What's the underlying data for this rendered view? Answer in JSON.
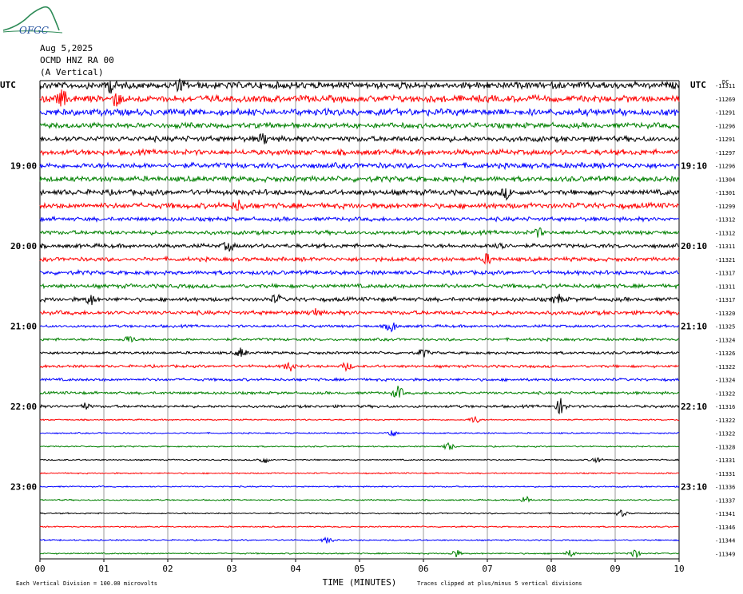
{
  "header": {
    "date": "Aug 5,2025",
    "channel": "OCMD HNZ RA 00",
    "component": "(A Vertical)"
  },
  "logo_text": "OFGC",
  "colors": {
    "black": "#000000",
    "red": "#ff0000",
    "blue": "#0000ff",
    "green": "#008000",
    "grid": "#808080"
  },
  "chart_data": {
    "type": "line",
    "title": "",
    "xlabel": "TIME (MINUTES)",
    "ylabel": "",
    "x_ticks": [
      "00",
      "01",
      "02",
      "03",
      "04",
      "05",
      "06",
      "07",
      "08",
      "09",
      "10"
    ],
    "xlim": [
      0,
      10
    ],
    "left_axis_label": "UTC",
    "right_axis_label": "UTC",
    "right_axis_unit": "DC",
    "left_time_labels": [
      {
        "row": 6,
        "label": "19:00"
      },
      {
        "row": 12,
        "label": "20:00"
      },
      {
        "row": 18,
        "label": "21:00"
      },
      {
        "row": 24,
        "label": "22:00"
      },
      {
        "row": 30,
        "label": "23:00"
      }
    ],
    "right_time_labels": [
      {
        "row": 6,
        "label": "19:10"
      },
      {
        "row": 12,
        "label": "20:10"
      },
      {
        "row": 18,
        "label": "21:10"
      },
      {
        "row": 24,
        "label": "22:10"
      },
      {
        "row": 30,
        "label": "23:10"
      }
    ],
    "trace_colors": [
      "black",
      "red",
      "blue",
      "green"
    ],
    "dc_offsets": [
      -11311,
      -11269,
      -11291,
      -11296,
      -11291,
      -11297,
      -11296,
      -11304,
      -11301,
      -11299,
      -11312,
      -11312,
      -11311,
      -11321,
      -11317,
      -11311,
      -11317,
      -11320,
      -11325,
      -11324,
      -11326,
      -11322,
      -11324,
      -11322,
      -11316,
      -11322,
      -11322,
      -11328,
      -11331,
      -11331,
      -11336,
      -11337,
      -11341,
      -11346,
      -11344,
      -11349
    ],
    "amplitude": [
      5,
      5,
      5,
      4,
      4,
      4,
      4,
      4,
      4,
      4,
      3,
      3,
      3,
      3,
      3,
      3,
      3,
      3,
      2,
      2,
      2,
      2,
      2,
      2,
      2,
      1,
      1,
      1,
      1,
      1,
      1,
      1,
      1,
      1,
      1,
      1
    ],
    "events": [
      {
        "row": 0,
        "t": 1.1,
        "amp": 8
      },
      {
        "row": 0,
        "t": 2.2,
        "amp": 6
      },
      {
        "row": 1,
        "t": 0.35,
        "amp": 10
      },
      {
        "row": 1,
        "t": 1.2,
        "amp": 8
      },
      {
        "row": 4,
        "t": 3.5,
        "amp": 6
      },
      {
        "row": 8,
        "t": 7.3,
        "amp": 6
      },
      {
        "row": 9,
        "t": 3.1,
        "amp": 6
      },
      {
        "row": 11,
        "t": 7.8,
        "amp": 5
      },
      {
        "row": 12,
        "t": 7.2,
        "amp": 8
      },
      {
        "row": 12,
        "t": 2.95,
        "amp": 6
      },
      {
        "row": 13,
        "t": 7.0,
        "amp": 6
      },
      {
        "row": 16,
        "t": 0.8,
        "amp": 6
      },
      {
        "row": 16,
        "t": 8.1,
        "amp": 6
      },
      {
        "row": 16,
        "t": 3.7,
        "amp": 5
      },
      {
        "row": 17,
        "t": 4.3,
        "amp": 5
      },
      {
        "row": 18,
        "t": 5.5,
        "amp": 7
      },
      {
        "row": 19,
        "t": 1.4,
        "amp": 5
      },
      {
        "row": 20,
        "t": 3.15,
        "amp": 6
      },
      {
        "row": 20,
        "t": 6.0,
        "amp": 5
      },
      {
        "row": 21,
        "t": 3.9,
        "amp": 6
      },
      {
        "row": 21,
        "t": 4.8,
        "amp": 5
      },
      {
        "row": 23,
        "t": 5.6,
        "amp": 8
      },
      {
        "row": 24,
        "t": 8.15,
        "amp": 10
      },
      {
        "row": 24,
        "t": 0.7,
        "amp": 4
      },
      {
        "row": 25,
        "t": 6.8,
        "amp": 5
      },
      {
        "row": 26,
        "t": 5.5,
        "amp": 5
      },
      {
        "row": 27,
        "t": 6.4,
        "amp": 5
      },
      {
        "row": 28,
        "t": 3.5,
        "amp": 5
      },
      {
        "row": 28,
        "t": 8.7,
        "amp": 4
      },
      {
        "row": 31,
        "t": 7.6,
        "amp": 5
      },
      {
        "row": 32,
        "t": 9.1,
        "amp": 4
      },
      {
        "row": 34,
        "t": 4.5,
        "amp": 4
      },
      {
        "row": 35,
        "t": 6.5,
        "amp": 5
      },
      {
        "row": 35,
        "t": 9.3,
        "amp": 6
      },
      {
        "row": 35,
        "t": 8.3,
        "amp": 4
      }
    ],
    "footer_left": "Each Vertical Division =  100.00 microvolts",
    "footer_right": "Traces clipped at plus/minus 5 vertical divisions"
  }
}
